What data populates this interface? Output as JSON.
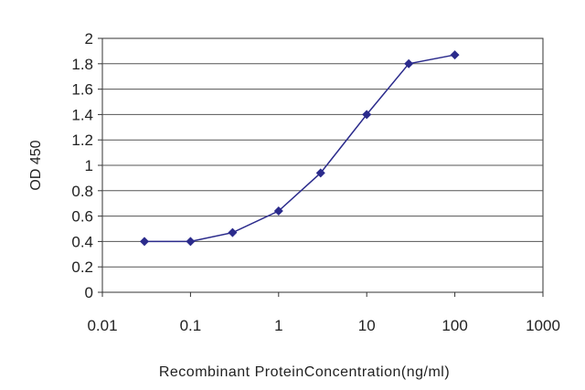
{
  "chart_data": {
    "type": "line",
    "title": "",
    "xlabel": "Recombinant ProteinConcentration(ng/ml)",
    "ylabel": "OD 450",
    "x_scale": "log",
    "xlim": [
      0.01,
      1000
    ],
    "ylim": [
      0,
      2
    ],
    "x_ticks": [
      "0.01",
      "0.1",
      "1",
      "10",
      "100",
      "1000"
    ],
    "y_ticks": [
      "0",
      "0.2",
      "0.4",
      "0.6",
      "0.8",
      "1",
      "1.2",
      "1.4",
      "1.6",
      "1.8",
      "2"
    ],
    "grid": "horizontal",
    "legend": "none",
    "series": [
      {
        "x": [
          0.03,
          0.1,
          0.3,
          1,
          3,
          10,
          30,
          100
        ],
        "y": [
          0.4,
          0.4,
          0.47,
          0.64,
          0.94,
          1.4,
          1.8,
          1.87
        ]
      }
    ],
    "colors": {
      "series": "#2b2b8c",
      "grid": "#555555",
      "axis": "#333333"
    }
  }
}
